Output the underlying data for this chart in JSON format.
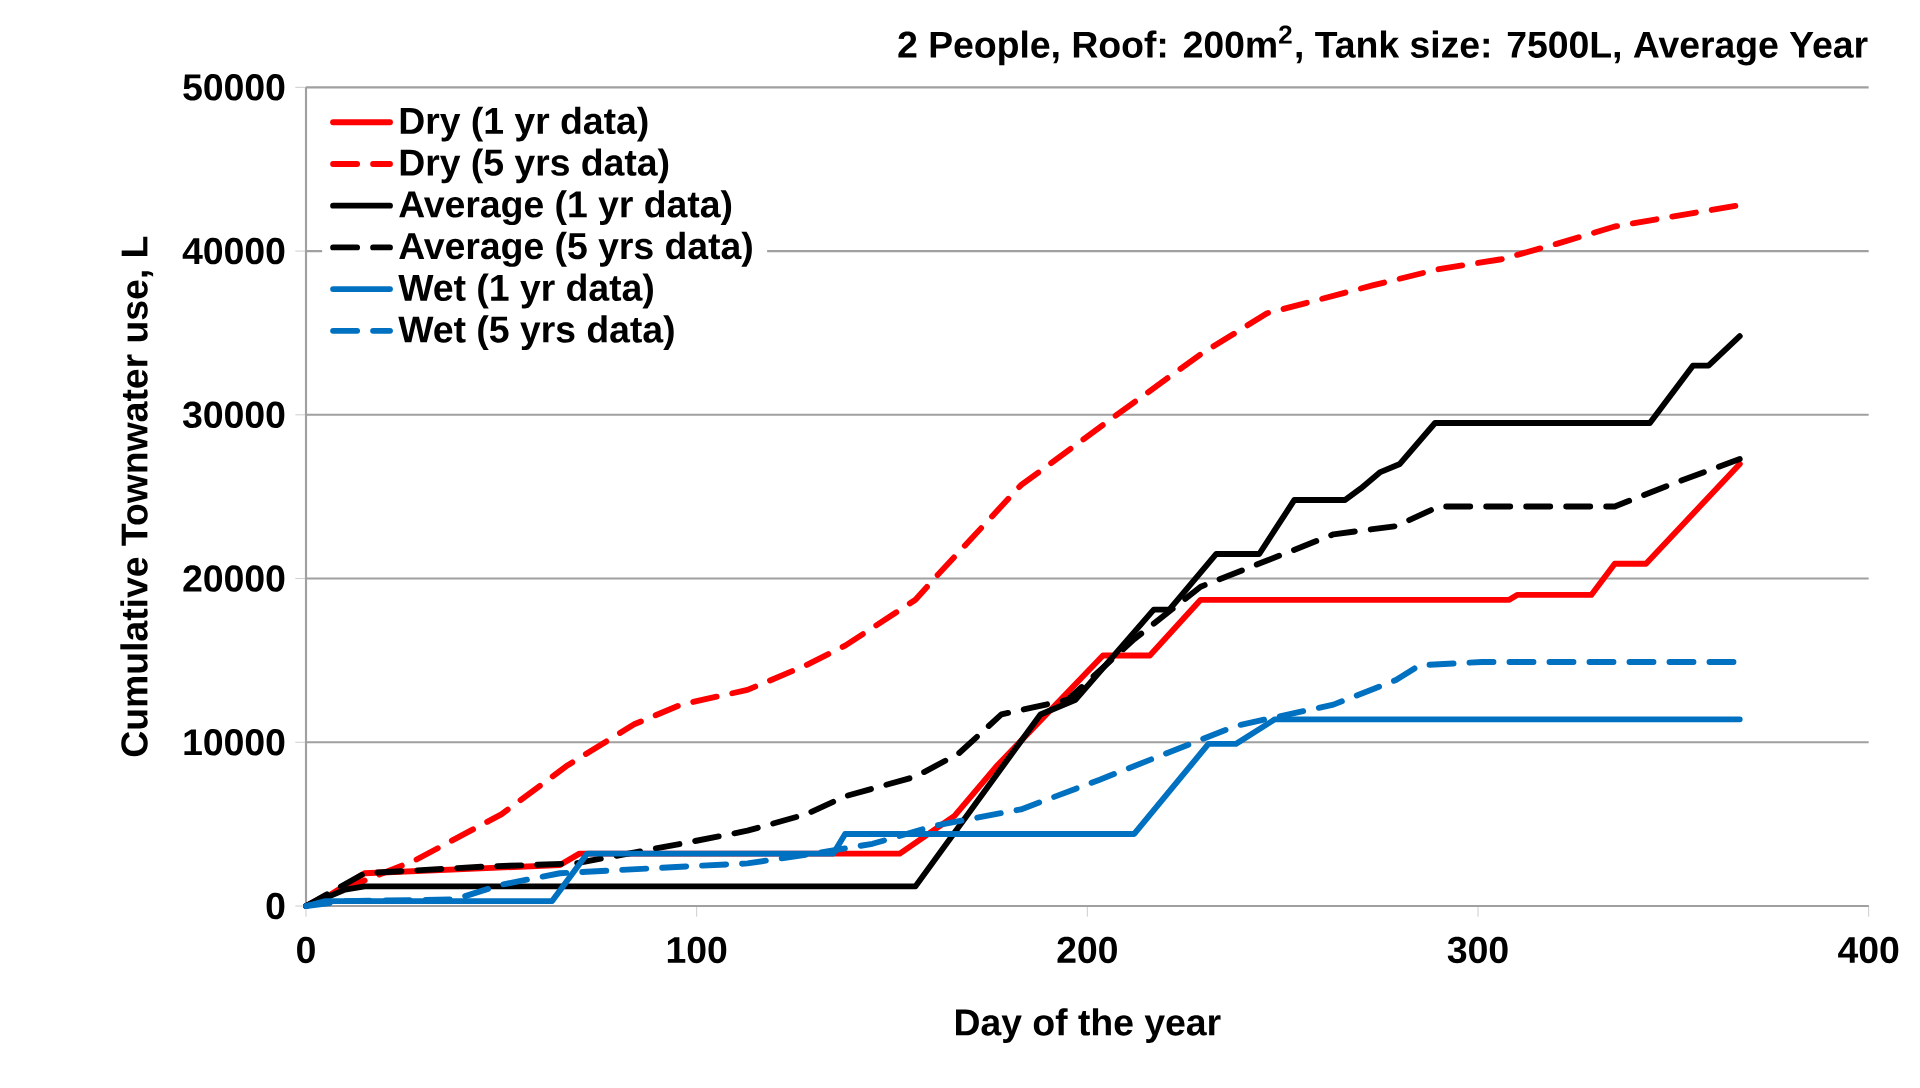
{
  "chart_data": {
    "type": "line",
    "title": "2 People, Roof: 200m$^{2}$, Tank size: 7500L, Average Year",
    "xlabel": "Day of the year",
    "ylabel": "Cumulative Townwater use, L",
    "xlim": [
      0,
      400
    ],
    "xticks": [
      0,
      100,
      200,
      300,
      400
    ],
    "ylim": [
      0,
      50000
    ],
    "yticks": [
      0,
      10000,
      20000,
      30000,
      40000,
      50000
    ],
    "grid": "y",
    "legend": "top left",
    "marker": "none",
    "series": [
      {
        "name": "Dry (1 yr data)",
        "color": "#ff0000",
        "line_style": "solid",
        "x": [
          0,
          5,
          15,
          65,
          70,
          152,
          166,
          177,
          204,
          216,
          229,
          308,
          310,
          329,
          335,
          343,
          367
        ],
        "values": [
          0,
          500,
          2000,
          2500,
          3200,
          3200,
          5500,
          8600,
          15300,
          15300,
          18700,
          18700,
          19000,
          19000,
          20900,
          20900,
          27000
        ]
      },
      {
        "name": "Dry (5 yrs data)",
        "color": "#ff0000",
        "line_style": "dashed",
        "x": [
          0,
          4,
          28,
          50,
          67,
          84,
          96,
          113,
          128,
          138,
          156,
          162,
          183,
          207,
          229,
          246,
          273,
          290,
          306,
          321,
          335,
          352,
          367
        ],
        "values": [
          0,
          500,
          2800,
          5600,
          8600,
          11100,
          12300,
          13200,
          14700,
          15900,
          18700,
          20300,
          25700,
          29900,
          33700,
          36200,
          37900,
          38900,
          39500,
          40500,
          41500,
          42200,
          42800
        ]
      },
      {
        "name": "Average (1 yr data)",
        "color": "#000000",
        "line_style": "solid",
        "x": [
          0,
          10,
          15,
          156,
          188,
          197,
          217,
          221,
          233,
          244,
          253,
          266,
          270,
          275,
          280,
          289,
          344,
          355,
          359,
          367
        ],
        "values": [
          0,
          1000,
          1200,
          1200,
          11700,
          12600,
          18100,
          18100,
          21500,
          21500,
          24800,
          24800,
          25500,
          26500,
          27000,
          29500,
          29500,
          33000,
          33000,
          34800
        ]
      },
      {
        "name": "Average (5 yrs data)",
        "color": "#000000",
        "line_style": "dashed",
        "x": [
          0,
          15,
          45,
          69,
          96,
          113,
          128,
          138,
          156,
          167,
          178,
          195,
          212,
          229,
          246,
          263,
          279,
          290,
          335,
          350,
          367
        ],
        "values": [
          0,
          2000,
          2400,
          2600,
          3800,
          4600,
          5600,
          6700,
          7900,
          9300,
          11700,
          12600,
          16300,
          19500,
          21100,
          22700,
          23200,
          24400,
          24400,
          25800,
          27300
        ]
      },
      {
        "name": "Wet (1 yr data)",
        "color": "#0070c0",
        "line_style": "solid",
        "x": [
          0,
          5,
          63,
          72,
          135,
          138,
          212,
          231,
          238,
          248,
          367
        ],
        "values": [
          0,
          300,
          300,
          3200,
          3200,
          4400,
          4400,
          9900,
          9900,
          11400,
          11400
        ]
      },
      {
        "name": "Wet (5 yrs data)",
        "color": "#0070c0",
        "line_style": "dashed",
        "x": [
          0,
          10,
          38,
          50,
          65,
          96,
          113,
          130,
          145,
          161,
          183,
          203,
          220,
          238,
          263,
          279,
          285,
          301,
          367
        ],
        "values": [
          0,
          300,
          400,
          1300,
          2000,
          2400,
          2600,
          3200,
          3800,
          4900,
          5900,
          7700,
          9300,
          11000,
          12300,
          13800,
          14700,
          14900,
          14900
        ]
      }
    ]
  }
}
